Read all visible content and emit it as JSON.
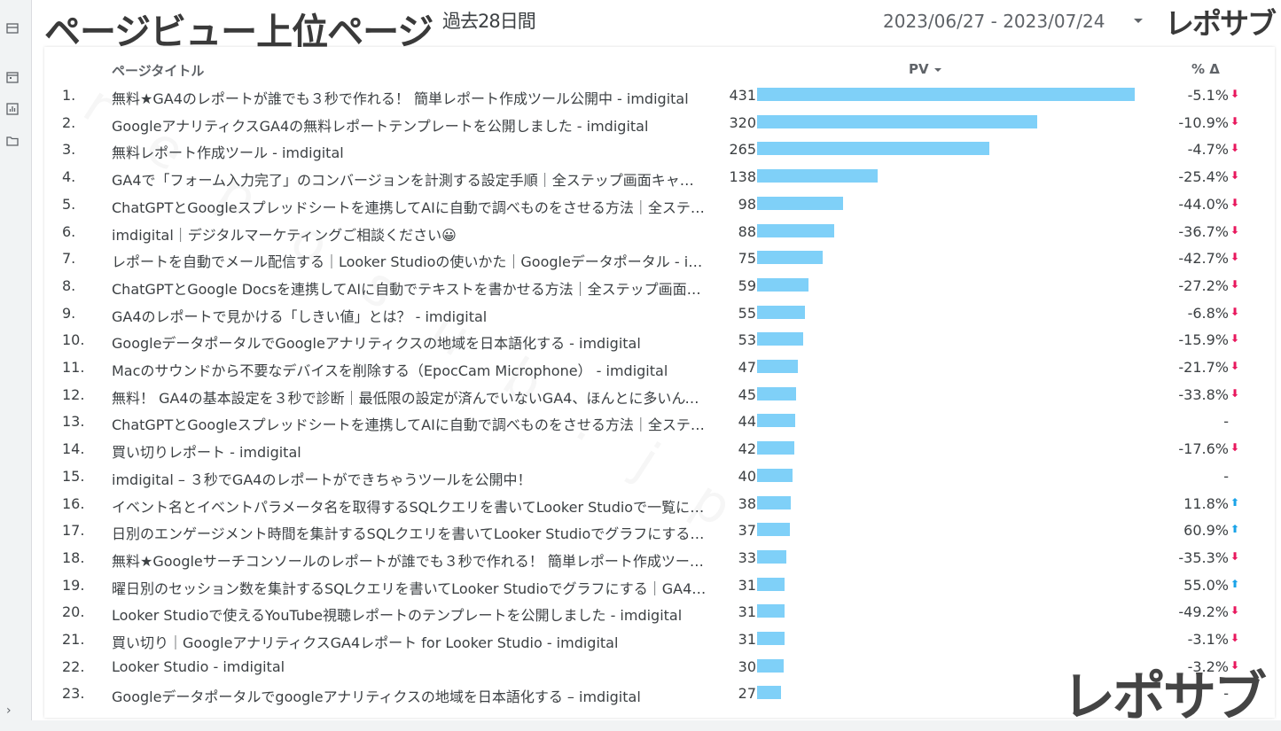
{
  "rail": {
    "icons": [
      "store-icon",
      "calendar-icon",
      "chart-icon",
      "folder-icon"
    ],
    "expand_glyph": "›"
  },
  "header": {
    "title": "ページビュー上位ページ",
    "subtitle": "過去28日間",
    "date_range": "2023/06/27 - 2023/07/24",
    "brand": "レポサブ"
  },
  "table": {
    "columns": {
      "title": "ページタイトル",
      "pv": "PV",
      "pct": "% Δ"
    },
    "max_pv": 431,
    "rows": [
      {
        "idx": "1.",
        "title": "無料★GA4のレポートが誰でも３秒で作れる！ 簡単レポート作成ツール公開中 - imdigital",
        "pv": 431,
        "pct": "-5.1%",
        "dir": "down"
      },
      {
        "idx": "2.",
        "title": "GoogleアナリティクスGA4の無料レポートテンプレートを公開しました - imdigital",
        "pv": 320,
        "pct": "-10.9%",
        "dir": "down"
      },
      {
        "idx": "3.",
        "title": "無料レポート作成ツール - imdigital",
        "pv": 265,
        "pct": "-4.7%",
        "dir": "down"
      },
      {
        "idx": "4.",
        "title": "GA4で「フォーム入力完了」のコンバージョンを計測する設定手順｜全ステップ画面キャプ…",
        "pv": 138,
        "pct": "-25.4%",
        "dir": "down"
      },
      {
        "idx": "5.",
        "title": "ChatGPTとGoogleスプレッドシートを連携してAIに自動で調べものをさせる方法｜全ステッ…",
        "pv": 98,
        "pct": "-44.0%",
        "dir": "down"
      },
      {
        "idx": "6.",
        "title": "imdigital｜デジタルマーケティングご相談ください😀",
        "pv": 88,
        "pct": "-36.7%",
        "dir": "down"
      },
      {
        "idx": "7.",
        "title": "レポートを自動でメール配信する｜Looker Studioの使いかた｜Googleデータポータル - im…",
        "pv": 75,
        "pct": "-42.7%",
        "dir": "down"
      },
      {
        "idx": "8.",
        "title": "ChatGPTとGoogle Docsを連携してAIに自動でテキストを書かせる方法｜全ステップ画面キ…",
        "pv": 59,
        "pct": "-27.2%",
        "dir": "down"
      },
      {
        "idx": "9.",
        "title": "GA4のレポートで見かける「しきい値」とは？ - imdigital",
        "pv": 55,
        "pct": "-6.8%",
        "dir": "down"
      },
      {
        "idx": "10.",
        "title": "GoogleデータポータルでGoogleアナリティクスの地域を日本語化する - imdigital",
        "pv": 53,
        "pct": "-15.9%",
        "dir": "down"
      },
      {
        "idx": "11.",
        "title": "Macのサウンドから不要なデバイスを削除する（EpocCam Microphone） - imdigital",
        "pv": 47,
        "pct": "-21.7%",
        "dir": "down"
      },
      {
        "idx": "12.",
        "title": "無料！ GA4の基本設定を３秒で診断｜最低限の設定が済んでいないGA4、ほんとに多いんで…",
        "pv": 45,
        "pct": "-33.8%",
        "dir": "down"
      },
      {
        "idx": "13.",
        "title": "ChatGPTとGoogleスプレッドシートを連携してAIに自動で調べものをさせる方法｜全ステッ…",
        "pv": 44,
        "pct": "-",
        "dir": "none"
      },
      {
        "idx": "14.",
        "title": "買い切りレポート - imdigital",
        "pv": 42,
        "pct": "-17.6%",
        "dir": "down"
      },
      {
        "idx": "15.",
        "title": "imdigital – ３秒でGA4のレポートができちゃうツールを公開中！",
        "pv": 40,
        "pct": "-",
        "dir": "none"
      },
      {
        "idx": "16.",
        "title": "イベント名とイベントパラメータ名を取得するSQLクエリを書いてLooker Studioで一覧にす…",
        "pv": 38,
        "pct": "11.8%",
        "dir": "up"
      },
      {
        "idx": "17.",
        "title": "日別のエンゲージメント時間を集計するSQLクエリを書いてLooker Studioでグラフにする…",
        "pv": 37,
        "pct": "60.9%",
        "dir": "up"
      },
      {
        "idx": "18.",
        "title": "無料★Googleサーチコンソールのレポートが誰でも３秒で作れる！ 簡単レポート作成ツール…",
        "pv": 33,
        "pct": "-35.3%",
        "dir": "down"
      },
      {
        "idx": "19.",
        "title": "曜日別のセッション数を集計するSQLクエリを書いてLooker Studioでグラフにする｜GA4…",
        "pv": 31,
        "pct": "55.0%",
        "dir": "up"
      },
      {
        "idx": "20.",
        "title": "Looker Studioで使えるYouTube視聴レポートのテンプレートを公開しました - imdigital",
        "pv": 31,
        "pct": "-49.2%",
        "dir": "down"
      },
      {
        "idx": "21.",
        "title": "買い切り｜GoogleアナリティクスGA4レポート for Looker Studio - imdigital",
        "pv": 31,
        "pct": "-3.1%",
        "dir": "down"
      },
      {
        "idx": "22.",
        "title": "Looker Studio - imdigital",
        "pv": 30,
        "pct": "-3.2%",
        "dir": "down"
      },
      {
        "idx": "23.",
        "title": "Googleデータポータルでgoogleアナリティクスの地域を日本語化する – imdigital",
        "pv": 27,
        "pct": "-",
        "dir": "none"
      }
    ]
  },
  "arrows": {
    "down": "⬇",
    "up": "⬆"
  },
  "colors": {
    "bar": "#7fd0f8",
    "down": "#e8175d",
    "up": "#1aa3e8"
  },
  "watermark": "reposub.jp",
  "footer_brand": "レポサブ"
}
